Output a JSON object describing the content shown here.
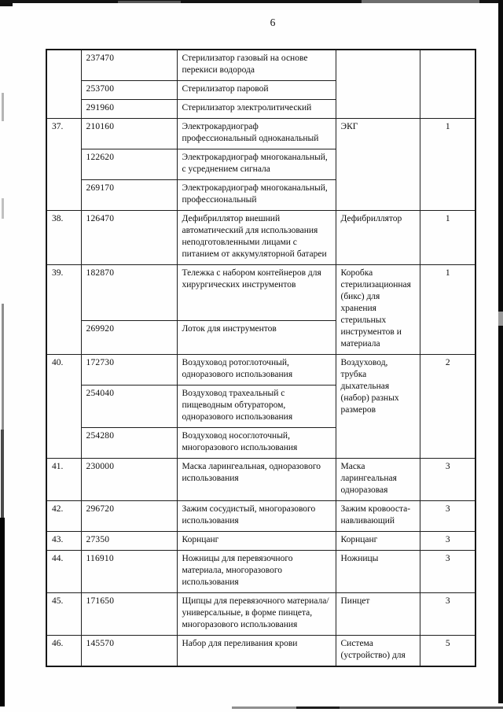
{
  "page": {
    "number": "6"
  },
  "colors": {
    "ink": "#0d0d0d",
    "border": "#1f1f1f",
    "artifact_black": "#0c0c0c",
    "artifact_gray": "#8f8f8f"
  },
  "table": {
    "rows": [
      {
        "num": "",
        "items": [
          {
            "code": "237470",
            "desc": "Стерилизатор газовый на основе перекиси водорода"
          },
          {
            "code": "253700",
            "desc": "Стерилизатор паровой"
          },
          {
            "code": "291960",
            "desc": "Стерилизатор электролитический"
          }
        ],
        "category": "",
        "qty": ""
      },
      {
        "num": "37.",
        "items": [
          {
            "code": "210160",
            "desc": "Электрокардиограф профессиональный одноканальный"
          },
          {
            "code": "122620",
            "desc": "Электрокардиограф многоканальный, с усреднением сигнала"
          },
          {
            "code": "269170",
            "desc": "Электрокардиограф многоканальный, профессиональный"
          }
        ],
        "category": "ЭКГ",
        "qty": "1"
      },
      {
        "num": "38.",
        "items": [
          {
            "code": "126470",
            "desc": "Дефибриллятор внешний автоматический для использования неподготовленными лицами с питанием от аккумуляторной батареи"
          }
        ],
        "category": "Дефибриллятор",
        "qty": "1"
      },
      {
        "num": "39.",
        "items": [
          {
            "code": "182870",
            "desc": "Тележка с набором контейнеров для хирургических инструментов"
          },
          {
            "code": "269920",
            "desc": "Лоток для инструментов"
          }
        ],
        "category": "Коробка стерилизационная (бикс) для хранения стерильных инструментов и материала",
        "qty": "1"
      },
      {
        "num": "40.",
        "items": [
          {
            "code": "172730",
            "desc": "Воздуховод ротоглоточный, одноразового использования"
          },
          {
            "code": "254040",
            "desc": "Воздуховод трахеальный с пищеводным обтуратором, одноразового использования"
          },
          {
            "code": "254280",
            "desc": "Воздуховод носоглоточный, многоразового использования"
          }
        ],
        "category": "Воздуховод, трубка дыхательная (набор) разных размеров",
        "qty": "2"
      },
      {
        "num": "41.",
        "items": [
          {
            "code": "230000",
            "desc": "Маска ларингеальная, одноразового использования"
          }
        ],
        "category": "Маска ларингеальная одноразовая",
        "qty": "3"
      },
      {
        "num": "42.",
        "items": [
          {
            "code": "296720",
            "desc": "Зажим сосудистый, многоразового использования"
          }
        ],
        "category": "Зажим кровооста-навливающий",
        "qty": "3"
      },
      {
        "num": "43.",
        "items": [
          {
            "code": "27350",
            "desc": "Корнцанг"
          }
        ],
        "category": "Корнцанг",
        "qty": "3"
      },
      {
        "num": "44.",
        "items": [
          {
            "code": "116910",
            "desc": "Ножницы для перевязочного материала, многоразового использования"
          }
        ],
        "category": "Ножницы",
        "qty": "3"
      },
      {
        "num": "45.",
        "items": [
          {
            "code": "171650",
            "desc": "Щипцы для перевязочного материала/универсальные, в форме пинцета, многоразового использования"
          }
        ],
        "category": "Пинцет",
        "qty": "3"
      },
      {
        "num": "46.",
        "items": [
          {
            "code": "145570",
            "desc": "Набор для переливания крови"
          }
        ],
        "category": "Система (устройство) для",
        "qty": "5"
      }
    ]
  }
}
